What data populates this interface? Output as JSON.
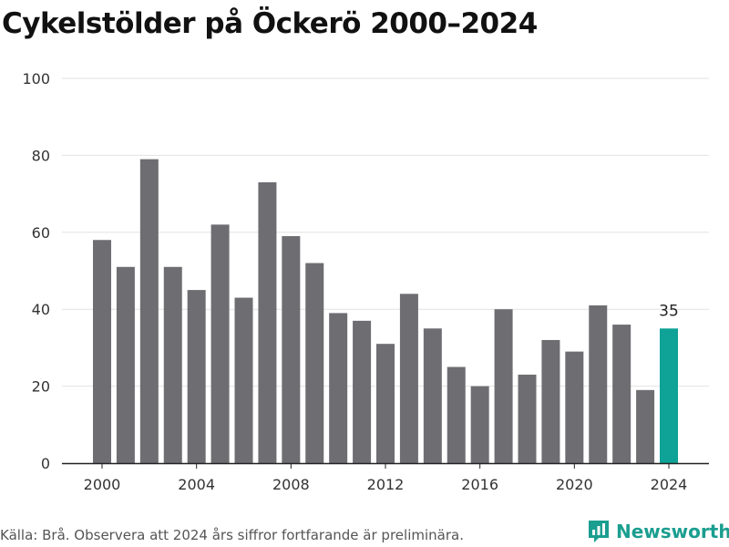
{
  "title": "Cykelstölder på Öckerö 2000–2024",
  "source": "Källa: Brå. Observera att 2024 års siffror fortfarande är preliminära.",
  "brand": "Newsworthy",
  "colors": {
    "bar": "#6e6d72",
    "highlight": "#0fa296",
    "brand": "#1a9e8f"
  },
  "chart_data": {
    "type": "bar",
    "title": "Cykelstölder på Öckerö 2000–2024",
    "xlabel": "",
    "ylabel": "",
    "ylim": [
      0,
      100
    ],
    "yticks": [
      0,
      20,
      40,
      60,
      80,
      100
    ],
    "xticks": [
      2000,
      2004,
      2008,
      2012,
      2016,
      2020,
      2024
    ],
    "grid": true,
    "categories": [
      2000,
      2001,
      2002,
      2003,
      2004,
      2005,
      2006,
      2007,
      2008,
      2009,
      2010,
      2011,
      2012,
      2013,
      2014,
      2015,
      2016,
      2017,
      2018,
      2019,
      2020,
      2021,
      2022,
      2023,
      2024
    ],
    "values": [
      58,
      51,
      79,
      51,
      45,
      62,
      43,
      73,
      59,
      52,
      39,
      37,
      31,
      44,
      35,
      25,
      20,
      40,
      23,
      32,
      29,
      41,
      36,
      19,
      35
    ],
    "highlight": {
      "category": 2024,
      "value": 35,
      "label": "35"
    }
  }
}
